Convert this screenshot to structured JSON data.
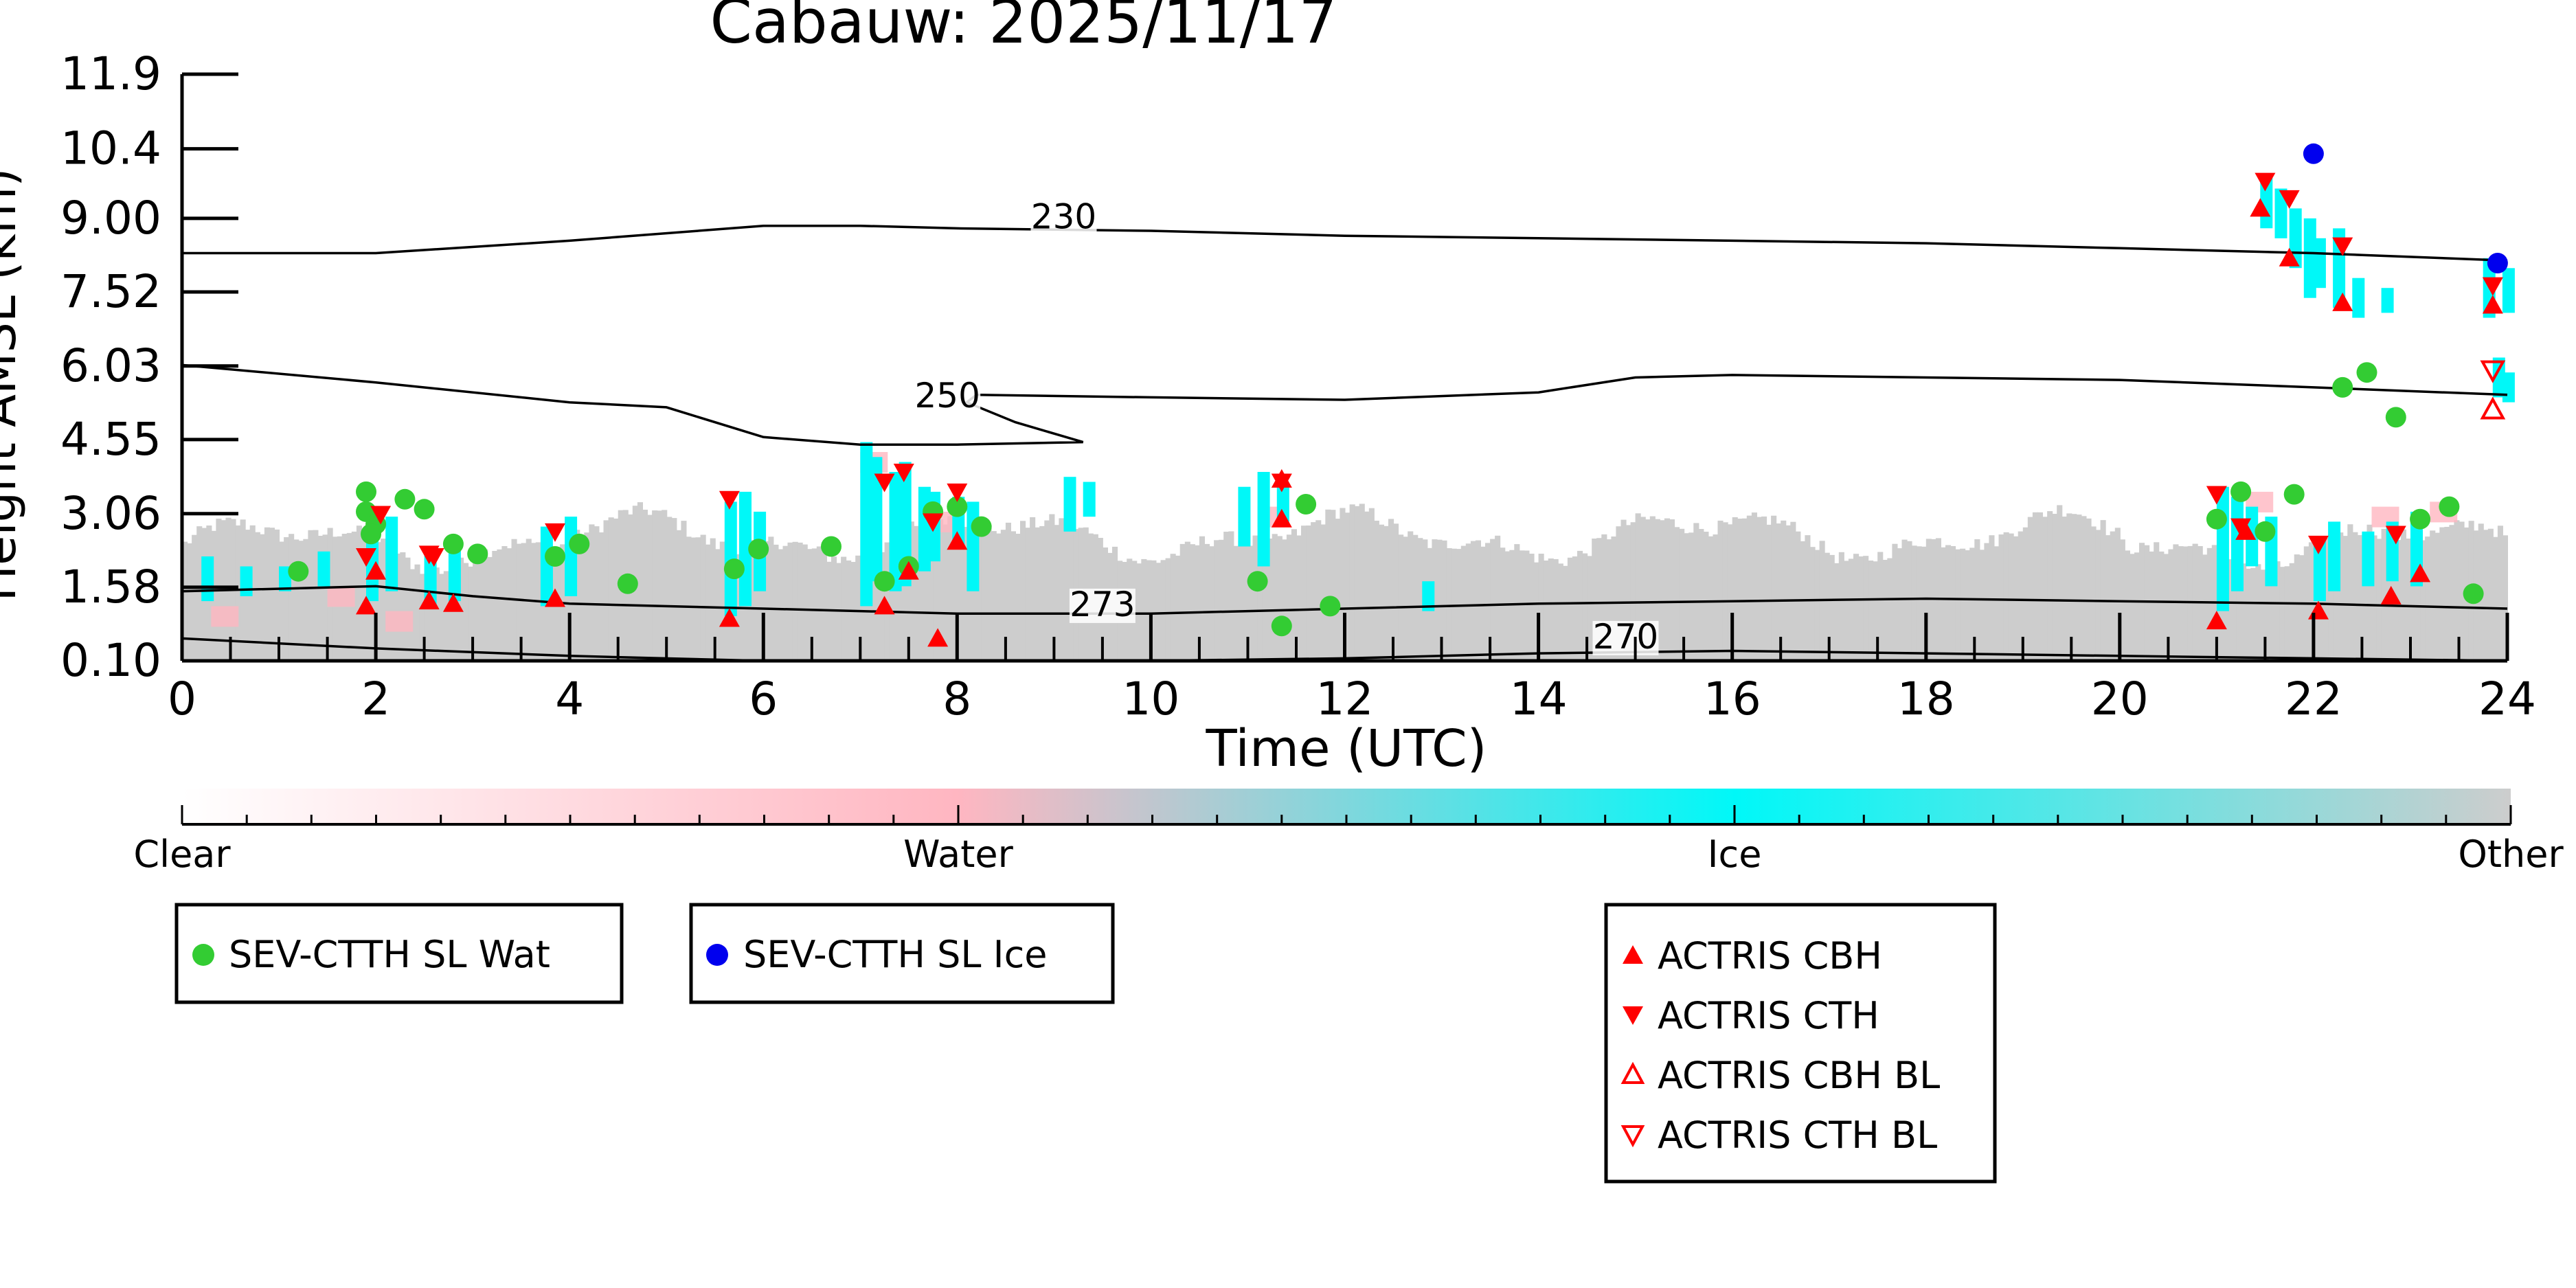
{
  "chart_data": {
    "type": "scatter",
    "title": "Cabauw: 2025/11/17",
    "xlabel": "Time (UTC)",
    "ylabel": "Height AMSL (km)",
    "xlim": [
      0,
      24
    ],
    "ylim": [
      0.1,
      11.9
    ],
    "x_ticks": [
      "0",
      "2",
      "4",
      "6",
      "8",
      "10",
      "12",
      "14",
      "16",
      "18",
      "20",
      "22",
      "24"
    ],
    "y_ticks": [
      "11.9",
      "10.4",
      "9.00",
      "7.52",
      "6.03",
      "4.55",
      "3.06",
      "1.58",
      "0.10"
    ],
    "colors": {
      "clear": "#ffffff",
      "water": "#ffb6c1",
      "ice": "#00f8f8",
      "other": "#cdcdcd",
      "sev_wat": "#33cc33",
      "sev_ice": "#0000ee",
      "actris": "#ff0000"
    },
    "colorbar": {
      "labels": [
        "Clear",
        "Water",
        "Ice",
        "Other"
      ]
    },
    "contours": [
      {
        "label": "230",
        "label_x": 9.1,
        "label_y": 8.8,
        "x": [
          0,
          2,
          4,
          6,
          7,
          8,
          10,
          12,
          14,
          16,
          18,
          20,
          22,
          24
        ],
        "y": [
          8.3,
          8.3,
          8.55,
          8.85,
          8.85,
          8.8,
          8.75,
          8.65,
          8.6,
          8.55,
          8.5,
          8.4,
          8.3,
          8.15
        ]
      },
      {
        "label": "250",
        "label_x": 7.9,
        "label_y": 5.2,
        "x": [
          0,
          2,
          4,
          5,
          6,
          7,
          8,
          9.3,
          8.6,
          8.1,
          8.2,
          10,
          12,
          14,
          15,
          16,
          18,
          20,
          22,
          24
        ],
        "y": [
          6.05,
          5.7,
          5.3,
          5.2,
          4.6,
          4.45,
          4.45,
          4.5,
          4.9,
          5.3,
          5.45,
          5.4,
          5.35,
          5.5,
          5.8,
          5.85,
          5.8,
          5.75,
          5.6,
          5.45
        ]
      },
      {
        "label": "273",
        "label_x": 9.5,
        "label_y": 1.0,
        "x": [
          0,
          2,
          3,
          4,
          6,
          8,
          10,
          12,
          14,
          16,
          18,
          20,
          22,
          24
        ],
        "y": [
          1.5,
          1.6,
          1.4,
          1.25,
          1.15,
          1.05,
          1.05,
          1.15,
          1.25,
          1.3,
          1.35,
          1.3,
          1.25,
          1.15
        ]
      },
      {
        "label": "270",
        "label_x": 14.9,
        "label_y": 0.35,
        "x": [
          0,
          2,
          4,
          6,
          8,
          10,
          12,
          14,
          16,
          18,
          20,
          22,
          24
        ],
        "y": [
          0.55,
          0.35,
          0.2,
          0.1,
          0.1,
          0.1,
          0.15,
          0.25,
          0.3,
          0.25,
          0.2,
          0.15,
          0.1
        ]
      }
    ],
    "series": [
      {
        "name": "SEV-CTTH SL Wat",
        "marker": "circle",
        "color": "#33cc33",
        "x": [
          1.2,
          1.9,
          1.9,
          2.0,
          1.95,
          2.3,
          2.5,
          2.8,
          3.05,
          3.85,
          4.1,
          4.6,
          5.7,
          5.95,
          6.7,
          7.25,
          7.5,
          7.75,
          8.0,
          8.25,
          11.1,
          11.35,
          11.6,
          11.85,
          21.0,
          21.25,
          21.5,
          21.8,
          22.3,
          22.55,
          22.85,
          23.1,
          23.4,
          23.65
        ],
        "y": [
          1.9,
          3.5,
          3.1,
          2.85,
          2.65,
          3.35,
          3.15,
          2.45,
          2.25,
          2.2,
          2.45,
          1.65,
          1.95,
          2.35,
          2.4,
          1.7,
          2.0,
          3.1,
          3.2,
          2.8,
          1.7,
          0.8,
          3.25,
          1.2,
          2.95,
          3.5,
          2.7,
          3.45,
          5.6,
          5.9,
          5.0,
          2.95,
          3.2,
          1.45
        ]
      },
      {
        "name": "SEV-CTTH SL Ice",
        "marker": "circle",
        "color": "#0000ee",
        "x": [
          22.0,
          23.9
        ],
        "y": [
          10.3,
          8.1
        ]
      },
      {
        "name": "ACTRIS CBH",
        "marker": "triangle-up",
        "color": "#ff0000",
        "x": [
          1.9,
          2.0,
          2.55,
          2.8,
          3.85,
          5.65,
          7.25,
          7.5,
          7.8,
          8.0,
          11.35,
          11.35,
          21.0,
          21.3,
          21.45,
          21.75,
          22.05,
          22.3,
          22.8,
          23.1,
          23.85
        ],
        "y": [
          1.2,
          1.9,
          1.3,
          1.25,
          1.35,
          0.95,
          1.2,
          1.9,
          0.55,
          2.5,
          2.95,
          3.75,
          0.9,
          2.7,
          9.2,
          8.2,
          1.1,
          7.3,
          1.4,
          1.85,
          7.25
        ]
      },
      {
        "name": "ACTRIS CTH",
        "marker": "triangle-down",
        "color": "#ff0000",
        "x": [
          1.9,
          2.05,
          2.55,
          2.6,
          3.85,
          5.65,
          7.25,
          7.45,
          7.75,
          8.0,
          11.35,
          21.0,
          21.25,
          21.5,
          21.75,
          22.05,
          22.3,
          22.85,
          23.85
        ],
        "y": [
          2.2,
          3.05,
          2.25,
          2.2,
          2.7,
          3.35,
          3.7,
          3.9,
          2.9,
          3.5,
          3.7,
          3.45,
          2.8,
          9.75,
          9.4,
          2.45,
          8.45,
          2.65,
          7.65
        ]
      },
      {
        "name": "ACTRIS CBH BL",
        "marker": "triangle-up-open",
        "color": "#ff0000",
        "x": [
          23.85
        ],
        "y": [
          5.15
        ]
      },
      {
        "name": "ACTRIS CTH BL",
        "marker": "triangle-down-open",
        "color": "#ff0000",
        "x": [
          23.85
        ],
        "y": [
          5.95
        ]
      }
    ],
    "legends": [
      {
        "entries": [
          "SEV-CTTH SL Wat"
        ]
      },
      {
        "entries": [
          "SEV-CTTH SL Ice"
        ]
      },
      {
        "entries": [
          "ACTRIS CBH",
          "ACTRIS CTH",
          "ACTRIS CBH BL",
          "ACTRIS CTH BL"
        ]
      }
    ]
  }
}
